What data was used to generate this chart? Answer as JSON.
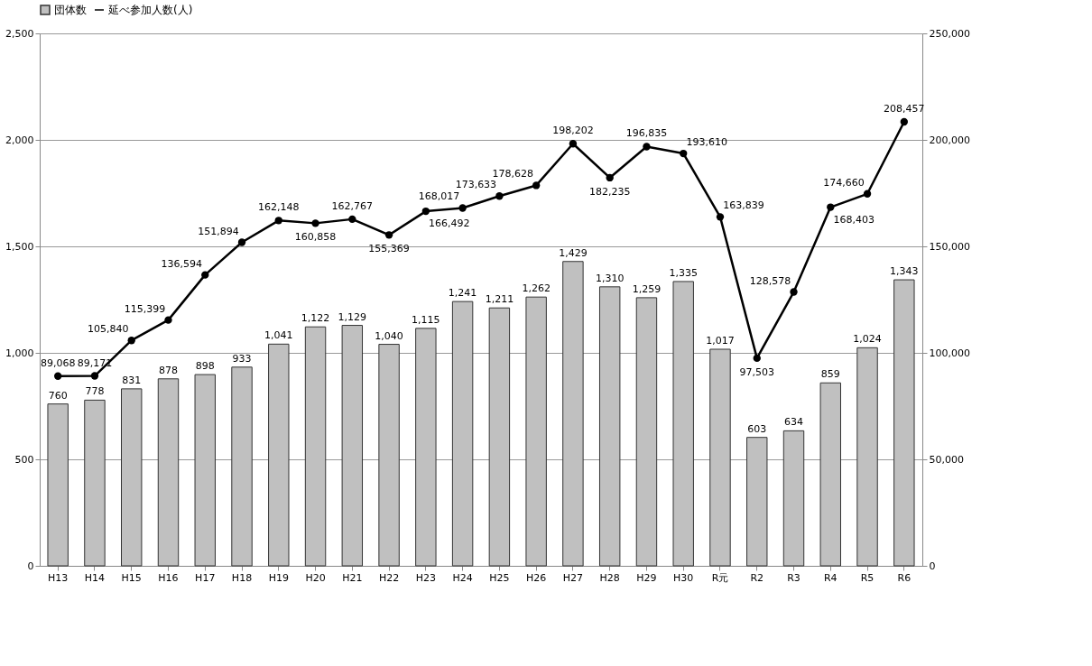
{
  "chart_data": {
    "type": "bar",
    "categories": [
      "H13",
      "H14",
      "H15",
      "H16",
      "H17",
      "H18",
      "H19",
      "H20",
      "H21",
      "H22",
      "H23",
      "H24",
      "H25",
      "H26",
      "H27",
      "H28",
      "H29",
      "H30",
      "R元",
      "R2",
      "R3",
      "R4",
      "R5",
      "R6"
    ],
    "series": [
      {
        "name": "団体数",
        "color": "#c0c0c0",
        "values": [
          760,
          778,
          831,
          878,
          898,
          933,
          1041,
          1122,
          1129,
          1040,
          1115,
          1241,
          1211,
          1262,
          1429,
          1310,
          1259,
          1335,
          1017,
          603,
          634,
          859,
          1024,
          1343
        ],
        "value_labels": [
          "760",
          "778",
          "831",
          "878",
          "898",
          "933",
          "1,041",
          "1,122",
          "1,129",
          "1,040",
          "1,115",
          "1,241",
          "1,211",
          "1,262",
          "1,429",
          "1,310",
          "1,259",
          "1,335",
          "1,017",
          "603",
          "634",
          "859",
          "1,024",
          "1,343"
        ]
      },
      {
        "name": "延べ参加人数(人)",
        "type": "line",
        "axis": "y2",
        "color": "#000000",
        "values": [
          89068,
          89171,
          105840,
          115399,
          136594,
          151894,
          162148,
          160858,
          162767,
          155369,
          166492,
          168017,
          173633,
          178628,
          198202,
          182235,
          196835,
          193610,
          163839,
          97503,
          128578,
          168403,
          174660,
          208457
        ],
        "value_labels": [
          "89,068",
          "89,171",
          "105,840",
          "115,399",
          "136,594",
          "151,894",
          "162,148",
          "160,858",
          "162,767",
          "155,369",
          "166,492",
          "168,017",
          "173,633",
          "178,628",
          "198,202",
          "182,235",
          "196,835",
          "193,610",
          "163,839",
          "97,503",
          "128,578",
          "168,403",
          "174,660",
          "208,457"
        ]
      }
    ],
    "ylim": [
      0,
      2500
    ],
    "yticks": [
      0,
      500,
      {
        "value": 1000,
        "label": "1,000"
      },
      {
        "value": 1500,
        "label": "1,500"
      },
      {
        "value": 2000,
        "label": "2,000"
      },
      {
        "value": 2500,
        "label": "2,500"
      }
    ],
    "y2lim": [
      0,
      250000
    ],
    "y2ticks": [
      0,
      {
        "value": 50000,
        "label": "50,000"
      },
      {
        "value": 100000,
        "label": "100,000"
      },
      {
        "value": 150000,
        "label": "150,000"
      },
      {
        "value": 200000,
        "label": "200,000"
      },
      {
        "value": 250000,
        "label": "250,000"
      }
    ],
    "grid": "y",
    "legend": "top",
    "marker": "circle",
    "line_style": "solid"
  }
}
